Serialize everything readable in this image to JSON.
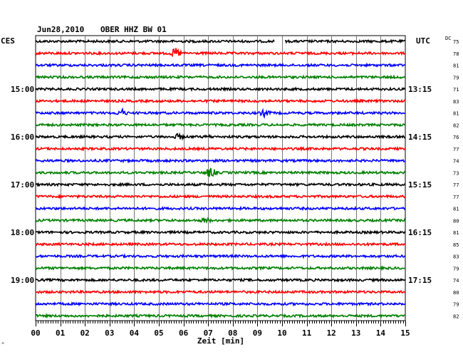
{
  "header": {
    "date": "Jun28,2010",
    "station": "OBER HHZ BW 01"
  },
  "left_timezone": "CES",
  "right_timezone": "UTC",
  "dc_label": "DC",
  "corner_mark": "^",
  "chart_data": {
    "type": "line",
    "title": "Jun28,2010   OBER HHZ BW 01",
    "xlabel": "Zeit [min]",
    "ylabel": "",
    "xlim": [
      0,
      15
    ],
    "x_ticks": [
      "00",
      "01",
      "02",
      "03",
      "04",
      "05",
      "06",
      "07",
      "08",
      "09",
      "10",
      "11",
      "12",
      "13",
      "14",
      "15"
    ],
    "grid": true,
    "trace_colors": [
      "#000000",
      "#ff0000",
      "#0000ff",
      "#008000"
    ],
    "left_hour_labels": [
      {
        "row": 4,
        "label": "15:00"
      },
      {
        "row": 8,
        "label": "16:00"
      },
      {
        "row": 12,
        "label": "17:00"
      },
      {
        "row": 16,
        "label": "18:00"
      },
      {
        "row": 20,
        "label": "19:00"
      }
    ],
    "right_time_labels": [
      {
        "row": 4,
        "label": "13:15"
      },
      {
        "row": 8,
        "label": "14:15"
      },
      {
        "row": 12,
        "label": "15:15"
      },
      {
        "row": 16,
        "label": "16:15"
      },
      {
        "row": 20,
        "label": "17:15"
      }
    ],
    "dc_offsets": [
      75,
      78,
      81,
      79,
      71,
      83,
      81,
      82,
      76,
      77,
      74,
      73,
      77,
      77,
      81,
      80,
      81,
      85,
      83,
      79,
      74,
      80,
      79,
      82
    ],
    "events": [
      {
        "row": 1,
        "minute": 5.7,
        "amplitude": 8
      },
      {
        "row": 5,
        "minute": 5.7,
        "amplitude": 2
      },
      {
        "row": 6,
        "minute": 3.5,
        "amplitude": 6
      },
      {
        "row": 6,
        "minute": 9.3,
        "amplitude": 6
      },
      {
        "row": 8,
        "minute": 5.8,
        "amplitude": 5
      },
      {
        "row": 8,
        "minute": 7.0,
        "amplitude": 3
      },
      {
        "row": 11,
        "minute": 7.1,
        "amplitude": 8
      },
      {
        "row": 15,
        "minute": 6.9,
        "amplitude": 5
      }
    ],
    "gaps": [
      {
        "row": 0,
        "from": 9.7,
        "to": 10.1
      }
    ]
  }
}
